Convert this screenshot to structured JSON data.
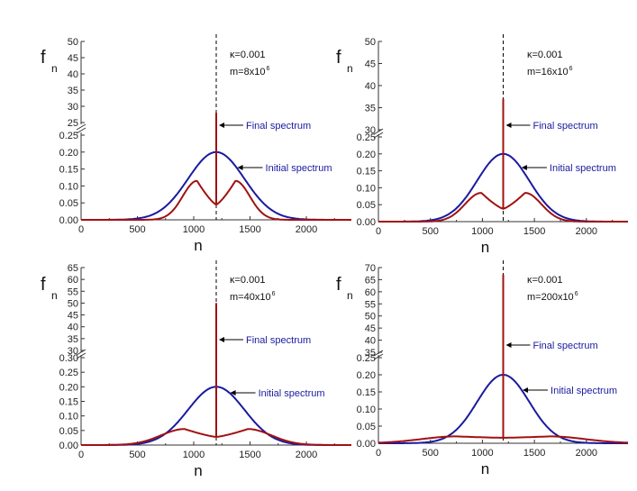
{
  "colors": {
    "initial": "#1a1aa0",
    "final": "#a01212",
    "axis": "#333333",
    "marker": "#000000"
  },
  "chart_data": [
    {
      "type": "line",
      "ylabel_main": "f",
      "ylabel_sub": "n",
      "xlabel": "n",
      "param_kappa": "κ=0.001",
      "param_m": "m=8x10",
      "param_m_exp": "6",
      "xlim": [
        0,
        2400
      ],
      "x_ticks": [
        "0",
        "500",
        "1000",
        "1500",
        "2000"
      ],
      "lower_ylim": [
        0,
        0.25
      ],
      "lower_ticks": [
        "0.00",
        "0.05",
        "0.10",
        "0.15",
        "0.20",
        "0.25"
      ],
      "upper_ylim": [
        25,
        50
      ],
      "upper_ticks": [
        "25",
        "30",
        "35",
        "40",
        "45",
        "50"
      ],
      "center": 1200,
      "initial": {
        "name": "Initial spectrum",
        "peak": 0.2,
        "sigma": 250
      },
      "final": {
        "name": "Final spectrum",
        "peak": 0.115,
        "peak_at": 1030,
        "dip": 0.045,
        "spike": 28
      },
      "annotations": [
        "Final spectrum",
        "Initial spectrum"
      ]
    },
    {
      "type": "line",
      "ylabel_main": "f",
      "ylabel_sub": "n",
      "xlabel": "n",
      "param_kappa": "κ=0.001",
      "param_m": "m=16x10",
      "param_m_exp": "6",
      "xlim": [
        0,
        2400
      ],
      "x_ticks": [
        "0",
        "500",
        "1000",
        "1500",
        "2000"
      ],
      "lower_ylim": [
        0,
        0.25
      ],
      "lower_ticks": [
        "0.00",
        "0.05",
        "0.10",
        "0.15",
        "0.20",
        "0.25"
      ],
      "upper_ylim": [
        30,
        50
      ],
      "upper_ticks": [
        "30",
        "35",
        "40",
        "45",
        "50"
      ],
      "center": 1200,
      "initial": {
        "name": "Initial spectrum",
        "peak": 0.2,
        "sigma": 250
      },
      "final": {
        "name": "Final spectrum",
        "peak": 0.085,
        "peak_at": 990,
        "dip": 0.038,
        "spike": 37
      },
      "annotations": [
        "Final spectrum",
        "Initial spectrum"
      ]
    },
    {
      "type": "line",
      "ylabel_main": "f",
      "ylabel_sub": "n",
      "xlabel": "n",
      "param_kappa": "κ=0.001",
      "param_m": "m=40x10",
      "param_m_exp": "6",
      "xlim": [
        0,
        2400
      ],
      "x_ticks": [
        "0",
        "500",
        "1000",
        "1500",
        "2000"
      ],
      "lower_ylim": [
        0,
        0.3
      ],
      "lower_ticks": [
        "0.00",
        "0.05",
        "0.10",
        "0.15",
        "0.20",
        "0.25",
        "0.30"
      ],
      "upper_ylim": [
        30,
        65
      ],
      "upper_ticks": [
        "30",
        "35",
        "40",
        "45",
        "50",
        "55",
        "60",
        "65"
      ],
      "center": 1200,
      "initial": {
        "name": "Initial spectrum",
        "peak": 0.2,
        "sigma": 250
      },
      "final": {
        "name": "Final spectrum",
        "peak": 0.055,
        "peak_at": 920,
        "dip": 0.028,
        "spike": 50
      },
      "annotations": [
        "Final spectrum",
        "Initial spectrum"
      ]
    },
    {
      "type": "line",
      "ylabel_main": "f",
      "ylabel_sub": "n",
      "xlabel": "n",
      "param_kappa": "κ=0.001",
      "param_m": "m=200x10",
      "param_m_exp": "6",
      "xlim": [
        0,
        2400
      ],
      "x_ticks": [
        "0",
        "500",
        "1000",
        "1500",
        "2000"
      ],
      "lower_ylim": [
        0,
        0.25
      ],
      "lower_ticks": [
        "0.00",
        "0.05",
        "0.10",
        "0.15",
        "0.20",
        "0.25"
      ],
      "upper_ylim": [
        35,
        70
      ],
      "upper_ticks": [
        "35",
        "40",
        "45",
        "50",
        "55",
        "60",
        "65",
        "70"
      ],
      "center": 1200,
      "initial": {
        "name": "Initial spectrum",
        "peak": 0.2,
        "sigma": 250
      },
      "final": {
        "name": "Final spectrum",
        "peak": 0.02,
        "peak_at": 750,
        "dip": 0.016,
        "spike": 67
      },
      "annotations": [
        "Final spectrum",
        "Initial spectrum"
      ]
    }
  ]
}
